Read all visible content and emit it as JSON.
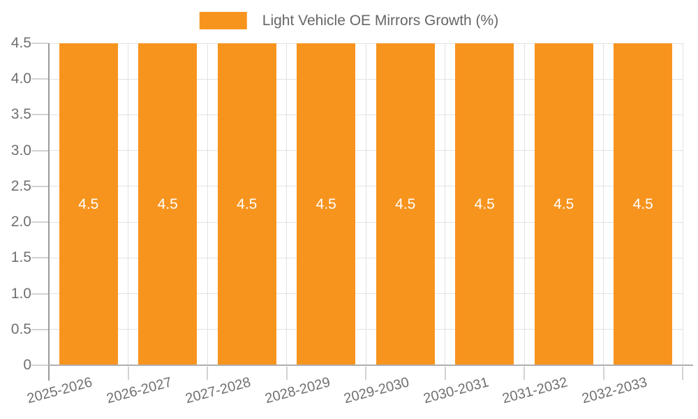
{
  "chart_data": {
    "type": "bar",
    "title": "",
    "legend_label": "Light Vehicle OE Mirrors Growth (%)",
    "legend_position": "top-center",
    "categories": [
      "2025-2026",
      "2026-2027",
      "2027-2028",
      "2028-2029",
      "2029-2030",
      "2030-2031",
      "2031-2032",
      "2032-2033"
    ],
    "series": [
      {
        "name": "Light Vehicle OE Mirrors Growth (%)",
        "values": [
          4.5,
          4.5,
          4.5,
          4.5,
          4.5,
          4.5,
          4.5,
          4.5
        ]
      }
    ],
    "value_labels": [
      "4.5",
      "4.5",
      "4.5",
      "4.5",
      "4.5",
      "4.5",
      "4.5",
      "4.5"
    ],
    "xlabel": "",
    "ylabel": "",
    "ylim": [
      0,
      4.5
    ],
    "yticks": [
      "0",
      "0.5",
      "1.0",
      "1.5",
      "2.0",
      "2.5",
      "3.0",
      "3.5",
      "4.0",
      "4.5"
    ],
    "grid": "horizontal and vertical gridlines on",
    "x_label_rotation_deg": -15,
    "colors": {
      "bar": "#F7941E",
      "bar_value_label": "#FFFFFF",
      "grid_line": "#E2E2E2",
      "tick_mark": "#D2D2D2",
      "y_axis_line": "#9B9B9B",
      "x_axis_line": "#AFAFAF",
      "tick_label_text": "#707070",
      "legend_text": "#666666",
      "background": "#FFFFFF"
    }
  }
}
